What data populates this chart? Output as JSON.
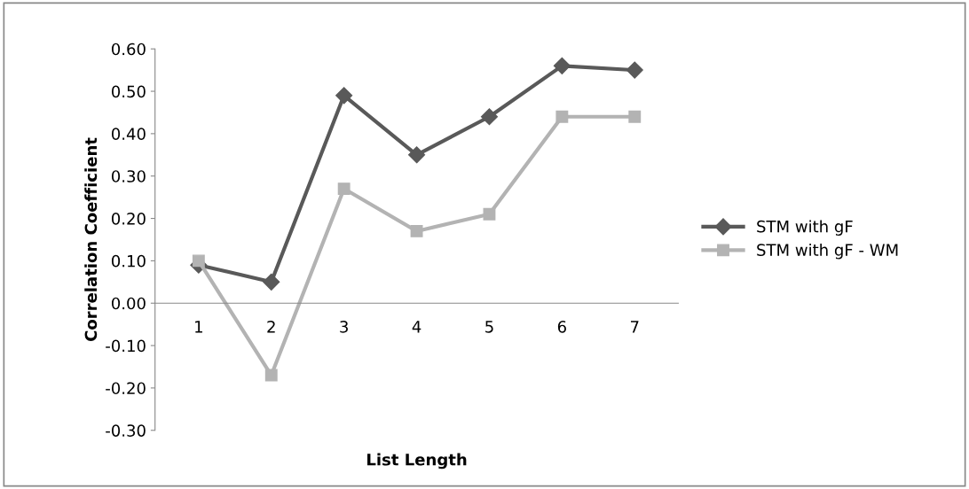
{
  "chart_data": {
    "type": "line",
    "xlabel": "List Length",
    "ylabel": "Correlation Coefficient",
    "categories": [
      "1",
      "2",
      "3",
      "4",
      "5",
      "6",
      "7"
    ],
    "series": [
      {
        "name": "STM with gF",
        "color": "#595959",
        "marker": "diamond",
        "values": [
          0.09,
          0.05,
          0.49,
          0.35,
          0.44,
          0.56,
          0.55
        ]
      },
      {
        "name": "STM with gF - WM",
        "color": "#b3b3b3",
        "marker": "square",
        "values": [
          0.1,
          -0.17,
          0.27,
          0.17,
          0.21,
          0.44,
          0.44
        ]
      }
    ],
    "ylim": [
      -0.3,
      0.6
    ],
    "yticks": [
      {
        "value": -0.3,
        "label": "-0.30"
      },
      {
        "value": -0.2,
        "label": "-0.20"
      },
      {
        "value": -0.1,
        "label": "-0.10"
      },
      {
        "value": 0,
        "label": "0.00"
      },
      {
        "value": 0.1,
        "label": "0.10"
      },
      {
        "value": 0.2,
        "label": "0.20"
      },
      {
        "value": 0.3,
        "label": "0.30"
      },
      {
        "value": 0.4,
        "label": "0.40"
      },
      {
        "value": 0.5,
        "label": "0.50"
      },
      {
        "value": 0.6,
        "label": "0.60"
      }
    ],
    "grid": false,
    "legend": "right"
  }
}
